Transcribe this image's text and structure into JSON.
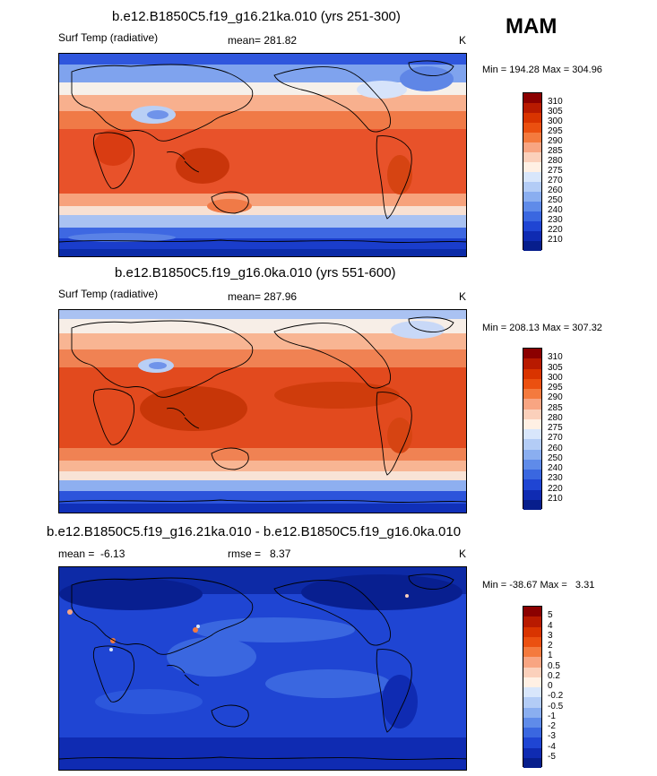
{
  "season": "MAM",
  "panels": [
    {
      "title": "b.e12.B1850C5.f19_g16.21ka.010 (yrs 251-300)",
      "left_label": "Surf Temp (radiative)",
      "center_label": "mean= 281.82",
      "unit": "K",
      "minmax": "Min = 194.28 Max = 304.96",
      "colorbar_labels": [
        "310",
        "305",
        "300",
        "295",
        "290",
        "285",
        "280",
        "275",
        "270",
        "260",
        "250",
        "240",
        "230",
        "220",
        "210"
      ],
      "colorbar_colors": [
        "#8b0000",
        "#b81a00",
        "#d93400",
        "#eb5010",
        "#f47a3e",
        "#f8a582",
        "#fbd0bb",
        "#fff0e4",
        "#d8e6fb",
        "#b3ccf6",
        "#8aaef0",
        "#5f8be9",
        "#3a67e0",
        "#1f45d3",
        "#0f2bb2",
        "#071e8c"
      ]
    },
    {
      "title": "b.e12.B1850C5.f19_g16.0ka.010 (yrs 551-600)",
      "left_label": "Surf Temp (radiative)",
      "center_label": "mean= 287.96",
      "unit": "K",
      "minmax": "Min = 208.13 Max = 307.32",
      "colorbar_labels": [
        "310",
        "305",
        "300",
        "295",
        "290",
        "285",
        "280",
        "275",
        "270",
        "260",
        "250",
        "240",
        "230",
        "220",
        "210"
      ],
      "colorbar_colors": [
        "#8b0000",
        "#b81a00",
        "#d93400",
        "#eb5010",
        "#f47a3e",
        "#f8a582",
        "#fbd0bb",
        "#fff0e4",
        "#d8e6fb",
        "#b3ccf6",
        "#8aaef0",
        "#5f8be9",
        "#3a67e0",
        "#1f45d3",
        "#0f2bb2",
        "#071e8c"
      ]
    },
    {
      "title": "b.e12.B1850C5.f19_g16.21ka.010 - b.e12.B1850C5.f19_g16.0ka.010",
      "left_label": "mean =  -6.13",
      "center_label": "rmse =   8.37",
      "unit": "K",
      "minmax": "Min = -38.67 Max =   3.31",
      "colorbar_labels": [
        "5",
        "4",
        "3",
        "2",
        "1",
        "0.5",
        "0.2",
        "0",
        "-0.2",
        "-0.5",
        "-1",
        "-2",
        "-3",
        "-4",
        "-5"
      ],
      "colorbar_colors": [
        "#8b0000",
        "#b81a00",
        "#d93400",
        "#eb5010",
        "#f47a3e",
        "#f8a582",
        "#fbd0bb",
        "#fff0e4",
        "#d8e6fb",
        "#b3ccf6",
        "#8aaef0",
        "#5f8be9",
        "#3a67e0",
        "#1f45d3",
        "#0f2bb2",
        "#071e8c"
      ]
    }
  ]
}
